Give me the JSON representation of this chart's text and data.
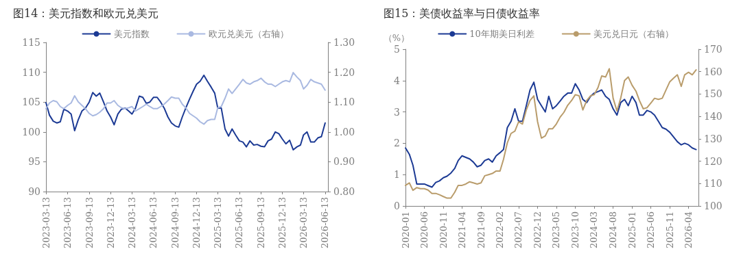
{
  "chart_data": [
    {
      "type": "line",
      "title": "图14：美元指数和欧元兑美元",
      "legend": "top",
      "marker": "none",
      "x": [
        "2023-03-13",
        "2023-03-28",
        "2023-04-13",
        "2023-04-28",
        "2023-05-13",
        "2023-05-28",
        "2023-06-13",
        "2023-06-28",
        "2023-07-13",
        "2023-07-28",
        "2023-08-13",
        "2023-08-28",
        "2023-09-13",
        "2023-09-28",
        "2023-10-13",
        "2023-10-28",
        "2023-11-13",
        "2023-11-28",
        "2023-12-13",
        "2023-12-28",
        "2024-01-13",
        "2024-01-28",
        "2024-02-13",
        "2024-02-28",
        "2024-03-13",
        "2024-03-28",
        "2024-04-13",
        "2024-04-28",
        "2024-05-13",
        "2024-05-28",
        "2024-06-13",
        "2024-06-28",
        "2024-07-13",
        "2024-07-28",
        "2024-08-13",
        "2024-08-28",
        "2024-09-13",
        "2024-09-28",
        "2024-10-13",
        "2024-10-28",
        "2024-11-13",
        "2024-11-28",
        "2024-12-13",
        "2024-12-28",
        "2025-01-13",
        "2025-01-28",
        "2025-02-13",
        "2025-02-28",
        "2025-03-13",
        "2025-03-28",
        "2025-04-13",
        "2025-04-28",
        "2025-05-13",
        "2025-05-28",
        "2025-06-13",
        "2025-06-28",
        "2025-07-13",
        "2025-07-28",
        "2025-08-13",
        "2025-08-28",
        "2025-09-13",
        "2025-09-28",
        "2025-10-13",
        "2025-10-28",
        "2025-11-13",
        "2025-11-28",
        "2025-12-13",
        "2025-12-28",
        "2026-01-13",
        "2026-01-28",
        "2026-02-13",
        "2026-02-28",
        "2026-03-13",
        "2026-03-28",
        "2026-04-13",
        "2026-04-28",
        "2026-05-13",
        "2026-05-28",
        "2026-06-13"
      ],
      "series": [
        {
          "name": "美元指数",
          "color": "#1c3a94",
          "values": [
            104.9,
            102.8,
            101.8,
            101.5,
            101.7,
            103.8,
            103.5,
            103,
            100.2,
            102,
            103.5,
            104,
            105,
            106.6,
            106,
            106.5,
            105,
            103.5,
            102.5,
            101.2,
            103,
            103.8,
            104,
            103.5,
            103,
            104,
            106,
            105.8,
            104.8,
            105,
            105.8,
            105.8,
            105,
            104,
            102.5,
            101.5,
            101,
            100.8,
            102.5,
            104,
            105.5,
            106.8,
            108,
            108.5,
            109.5,
            108.5,
            107.5,
            106.5,
            104,
            104,
            100.5,
            99.3,
            100.5,
            99.5,
            98.5,
            98.3,
            97.5,
            98.5,
            97.8,
            97.9,
            97.6,
            97.5,
            98.5,
            98.8,
            100,
            99.7,
            98.8,
            98,
            98.6,
            97,
            97.5,
            97.8,
            99.5,
            100,
            98.3,
            98.3,
            99,
            99.2,
            101.5
          ]
        },
        {
          "name": "欧元兑美元（右轴）",
          "color": "#a9b9e1",
          "axis": "y2",
          "values": [
            1.078,
            1.097,
            1.105,
            1.101,
            1.085,
            1.078,
            1.089,
            1.097,
            1.121,
            1.101,
            1.089,
            1.078,
            1.062,
            1.054,
            1.058,
            1.066,
            1.078,
            1.097,
            1.097,
            1.105,
            1.089,
            1.081,
            1.078,
            1.081,
            1.085,
            1.07,
            1.078,
            1.085,
            1.093,
            1.085,
            1.078,
            1.078,
            1.085,
            1.093,
            1.105,
            1.117,
            1.113,
            1.113,
            1.093,
            1.081,
            1.062,
            1.054,
            1.046,
            1.034,
            1.026,
            1.038,
            1.042,
            1.042,
            1.081,
            1.085,
            1.113,
            1.144,
            1.129,
            1.144,
            1.16,
            1.176,
            1.164,
            1.16,
            1.168,
            1.172,
            1.18,
            1.168,
            1.16,
            1.16,
            1.152,
            1.16,
            1.168,
            1.172,
            1.168,
            1.199,
            1.184,
            1.172,
            1.144,
            1.156,
            1.176,
            1.168,
            1.164,
            1.16,
            1.14
          ]
        }
      ],
      "xlim": [
        "2023-03-13",
        "2026-06-25"
      ],
      "xticks": [
        "2023-03-13",
        "2023-06-13",
        "2023-09-13",
        "2023-12-13",
        "2024-03-13",
        "2024-06-13",
        "2024-09-13",
        "2024-12-13",
        "2025-03-13",
        "2025-06-13",
        "2025-09-13",
        "2025-12-13",
        "2026-03-13",
        "2026-06-13"
      ],
      "ylim": [
        90,
        115
      ],
      "yticks": [
        90,
        95,
        100,
        105,
        110,
        115
      ],
      "y2lim": [
        0.8,
        1.3
      ],
      "y2ticks": [
        {
          "value": 0.8,
          "label": "0.80"
        },
        {
          "value": 0.9,
          "label": "0.90"
        },
        {
          "value": 1.0,
          "label": "1.00"
        },
        {
          "value": 1.1,
          "label": "1.10"
        },
        {
          "value": 1.2,
          "label": "1.20"
        },
        {
          "value": 1.3,
          "label": "1.30"
        }
      ]
    },
    {
      "type": "line",
      "title": "图15：美债收益率与日债收益率",
      "ylabel": "（%）",
      "legend": "top",
      "marker": "none",
      "x": [
        "2020-01",
        "2020-02",
        "2020-03",
        "2020-04",
        "2020-05",
        "2020-06",
        "2020-07",
        "2020-08",
        "2020-09",
        "2020-10",
        "2020-11",
        "2020-12",
        "2021-01",
        "2021-02",
        "2021-03",
        "2021-04",
        "2021-05",
        "2021-06",
        "2021-07",
        "2021-08",
        "2021-09",
        "2021-10",
        "2021-11",
        "2021-12",
        "2022-01",
        "2022-02",
        "2022-03",
        "2022-04",
        "2022-05",
        "2022-06",
        "2022-07",
        "2022-08",
        "2022-09",
        "2022-10",
        "2022-11",
        "2022-12",
        "2023-01",
        "2023-02",
        "2023-03",
        "2023-04",
        "2023-05",
        "2023-06",
        "2023-07",
        "2023-08",
        "2023-09",
        "2023-10",
        "2023-11",
        "2023-12",
        "2024-01",
        "2024-02",
        "2024-03",
        "2024-04",
        "2024-05",
        "2024-06",
        "2024-07",
        "2024-08",
        "2024-09",
        "2024-10",
        "2024-11",
        "2024-12",
        "2025-01",
        "2025-02",
        "2025-03",
        "2025-04",
        "2025-05",
        "2025-06",
        "2025-07",
        "2025-08",
        "2025-09",
        "2025-10",
        "2025-11",
        "2025-12",
        "2026-01",
        "2026-02",
        "2026-03",
        "2026-04",
        "2026-05",
        "2026-06"
      ],
      "series": [
        {
          "name": "10年期美日利差",
          "color": "#1c3a94",
          "values": [
            1.85,
            1.65,
            1.3,
            0.7,
            0.7,
            0.7,
            0.65,
            0.6,
            0.75,
            0.8,
            0.9,
            0.95,
            1.05,
            1.2,
            1.45,
            1.6,
            1.55,
            1.5,
            1.4,
            1.25,
            1.3,
            1.45,
            1.5,
            1.4,
            1.6,
            1.7,
            1.8,
            2.5,
            2.7,
            3.1,
            2.7,
            2.7,
            3.2,
            3.7,
            3.95,
            3.4,
            3.2,
            3.0,
            3.5,
            3.1,
            3.2,
            3.35,
            3.5,
            3.6,
            3.6,
            3.9,
            3.7,
            3.4,
            3.3,
            3.5,
            3.6,
            3.65,
            3.7,
            3.5,
            3.4,
            3.1,
            2.9,
            3.3,
            3.4,
            3.2,
            3.5,
            3.3,
            2.9,
            2.9,
            3.05,
            3.0,
            2.9,
            2.7,
            2.5,
            2.45,
            2.35,
            2.2,
            2.05,
            1.95,
            2.0,
            1.95,
            1.85,
            1.8
          ]
        },
        {
          "name": "美元兑日元（右轴）",
          "color": "#b99c6b",
          "axis": "y2",
          "values": [
            109.2,
            110.3,
            107,
            108.2,
            107.7,
            107.7,
            107.1,
            105.6,
            105.6,
            105,
            104.2,
            103.5,
            103.5,
            106.1,
            109.2,
            109.2,
            109.8,
            110.8,
            110.3,
            109.8,
            110.3,
            113.5,
            114,
            114.5,
            115.6,
            115.6,
            120.8,
            128.2,
            132.4,
            133.4,
            137.6,
            136.6,
            142.9,
            147.1,
            149.2,
            137.6,
            130.3,
            131.3,
            134.5,
            134.5,
            136.6,
            139.7,
            141.8,
            145,
            147.1,
            149.7,
            149.2,
            142.9,
            147.1,
            149.2,
            149.7,
            152.9,
            158.1,
            157.6,
            161.3,
            148.1,
            142.4,
            148.1,
            156,
            157.6,
            153.9,
            151.3,
            147.1,
            143.4,
            143.9,
            146,
            148.1,
            147.6,
            148.1,
            151.8,
            155.5,
            157.1,
            158.6,
            153.4,
            158.6,
            159.7,
            158.6,
            160.8
          ]
        }
      ],
      "xlim": [
        "2020-01",
        "2026-06-20"
      ],
      "xticks": [
        "2020-01",
        "2020-06",
        "2020-11",
        "2021-04",
        "2021-09",
        "2022-02",
        "2022-07",
        "2022-12",
        "2023-05",
        "2023-10",
        "2024-03",
        "2024-08",
        "2025-01",
        "2025-06",
        "2025-11",
        "2026-04"
      ],
      "ylim": [
        0,
        5
      ],
      "yticks": [
        0,
        1,
        2,
        3,
        4,
        5
      ],
      "y2lim": [
        100,
        170
      ],
      "y2ticks": [
        100,
        110,
        120,
        130,
        140,
        150,
        160,
        170
      ]
    }
  ]
}
